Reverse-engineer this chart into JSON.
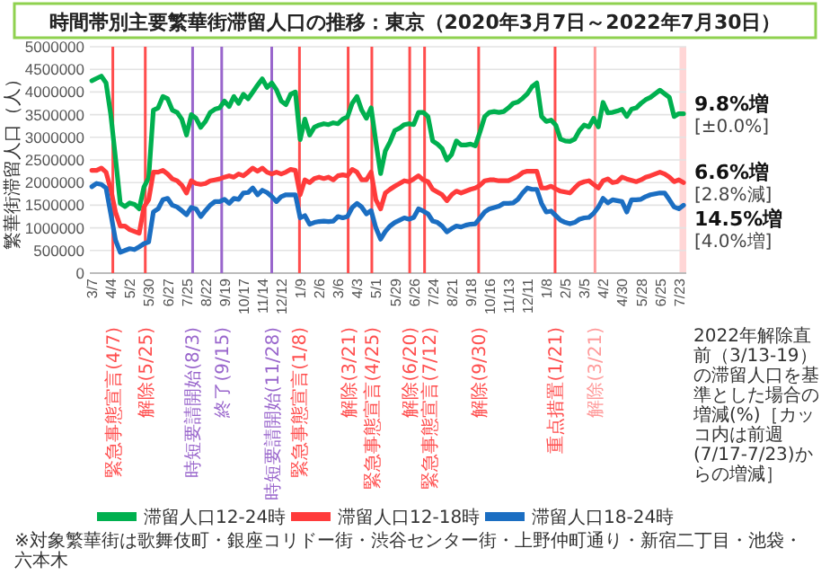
{
  "chart_data": {
    "type": "line",
    "title": "時間帯別主要繁華街滞留人口の推移：東京（2020年3月7日～2022年7月30日）",
    "ylabel": "繁華街滞留人口（人）",
    "x": [
      "2020-03-07",
      "2020-03-14",
      "2020-03-21",
      "2020-03-28",
      "2020-04-04",
      "2020-04-11",
      "2020-04-18",
      "2020-04-25",
      "2020-05-02",
      "2020-05-09",
      "2020-05-16",
      "2020-05-23",
      "2020-05-30",
      "2020-06-06",
      "2020-06-13",
      "2020-06-20",
      "2020-06-27",
      "2020-07-04",
      "2020-07-11",
      "2020-07-18",
      "2020-07-25",
      "2020-08-01",
      "2020-08-08",
      "2020-08-15",
      "2020-08-22",
      "2020-08-29",
      "2020-09-05",
      "2020-09-12",
      "2020-09-19",
      "2020-09-26",
      "2020-10-03",
      "2020-10-10",
      "2020-10-17",
      "2020-10-24",
      "2020-10-31",
      "2020-11-07",
      "2020-11-14",
      "2020-11-21",
      "2020-11-28",
      "2020-12-05",
      "2020-12-12",
      "2020-12-19",
      "2020-12-26",
      "2021-01-02",
      "2021-01-09",
      "2021-01-16",
      "2021-01-23",
      "2021-01-30",
      "2021-02-06",
      "2021-02-13",
      "2021-02-20",
      "2021-02-27",
      "2021-03-06",
      "2021-03-13",
      "2021-03-20",
      "2021-03-27",
      "2021-04-03",
      "2021-04-10",
      "2021-04-17",
      "2021-04-24",
      "2021-05-01",
      "2021-05-08",
      "2021-05-15",
      "2021-05-22",
      "2021-05-29",
      "2021-06-05",
      "2021-06-12",
      "2021-06-19",
      "2021-06-26",
      "2021-07-03",
      "2021-07-10",
      "2021-07-17",
      "2021-07-24",
      "2021-07-31",
      "2021-08-07",
      "2021-08-14",
      "2021-08-21",
      "2021-08-28",
      "2021-09-04",
      "2021-09-11",
      "2021-09-18",
      "2021-09-25",
      "2021-10-02",
      "2021-10-09",
      "2021-10-16",
      "2021-10-23",
      "2021-10-30",
      "2021-11-06",
      "2021-11-13",
      "2021-11-20",
      "2021-11-27",
      "2021-12-04",
      "2021-12-11",
      "2021-12-18",
      "2021-12-25",
      "2022-01-01",
      "2022-01-08",
      "2022-01-15",
      "2022-01-22",
      "2022-01-29",
      "2022-02-05",
      "2022-02-12",
      "2022-02-19",
      "2022-02-26",
      "2022-03-05",
      "2022-03-12",
      "2022-03-19",
      "2022-03-26",
      "2022-04-02",
      "2022-04-09",
      "2022-04-16",
      "2022-04-23",
      "2022-04-30",
      "2022-05-07",
      "2022-05-14",
      "2022-05-21",
      "2022-05-28",
      "2022-06-04",
      "2022-06-11",
      "2022-06-18",
      "2022-06-25",
      "2022-07-02",
      "2022-07-09",
      "2022-07-16",
      "2022-07-23",
      "2022-07-30"
    ],
    "series": [
      {
        "name": "滞留人口12-24時",
        "color": "#00b04f",
        "values": [
          4250000,
          4300000,
          4350000,
          4200000,
          3500000,
          2540000,
          1540000,
          1470000,
          1550000,
          1520000,
          1420000,
          1900000,
          2100000,
          3600000,
          3650000,
          3900000,
          3850000,
          3600000,
          3550000,
          3400000,
          3050000,
          3500000,
          3420000,
          3220000,
          3350000,
          3550000,
          3620000,
          3650000,
          3800000,
          3680000,
          3900000,
          3750000,
          3950000,
          3850000,
          4000000,
          4150000,
          4290000,
          4100000,
          4200000,
          4050000,
          3800000,
          3720000,
          3950000,
          4000000,
          2950000,
          3400000,
          3050000,
          3220000,
          3270000,
          3300000,
          3280000,
          3320000,
          3300000,
          3400000,
          3450000,
          3750000,
          3900000,
          3600000,
          3420000,
          3650000,
          2900000,
          2200000,
          2700000,
          2900000,
          3150000,
          3200000,
          3280000,
          3300000,
          3280000,
          3550000,
          3550000,
          3460000,
          2920000,
          2850000,
          2750000,
          2500000,
          2620000,
          2920000,
          2830000,
          2830000,
          2850000,
          2810000,
          3120000,
          3460000,
          3550000,
          3570000,
          3550000,
          3570000,
          3650000,
          3750000,
          3780000,
          3860000,
          3960000,
          4120000,
          4200000,
          3460000,
          3350000,
          3380000,
          3270000,
          2960000,
          2920000,
          2910000,
          2960000,
          3150000,
          3270000,
          3230000,
          3420000,
          3230000,
          3770000,
          3540000,
          3550000,
          3580000,
          3620000,
          3460000,
          3620000,
          3650000,
          3750000,
          3830000,
          3880000,
          3960000,
          4040000,
          3960000,
          3880000,
          3460000,
          3520000,
          3520000
        ]
      },
      {
        "name": "滞留人口12-18時",
        "color": "#ff3b3b",
        "values": [
          2270000,
          2270000,
          2320000,
          2230000,
          1850000,
          1350000,
          1040000,
          1040000,
          960000,
          920000,
          880000,
          1460000,
          1620000,
          2230000,
          2230000,
          2270000,
          2190000,
          2080000,
          2040000,
          1940000,
          1770000,
          2040000,
          1980000,
          1960000,
          1980000,
          2040000,
          2060000,
          2080000,
          2120000,
          2150000,
          2120000,
          2190000,
          2150000,
          2230000,
          2320000,
          2250000,
          2320000,
          2230000,
          2190000,
          2230000,
          2190000,
          2230000,
          2290000,
          2270000,
          1730000,
          2060000,
          2000000,
          2090000,
          2120000,
          2090000,
          2120000,
          2060000,
          2150000,
          2170000,
          2150000,
          2290000,
          2230000,
          2060000,
          2060000,
          2230000,
          1620000,
          1420000,
          1770000,
          1850000,
          1920000,
          1980000,
          2040000,
          2020000,
          2080000,
          2150000,
          2060000,
          2020000,
          1850000,
          1790000,
          1730000,
          1600000,
          1730000,
          1810000,
          1770000,
          1810000,
          1850000,
          1880000,
          1940000,
          2040000,
          2060000,
          2060000,
          2040000,
          2040000,
          2040000,
          2090000,
          2140000,
          2220000,
          2250000,
          2250000,
          2250000,
          1880000,
          1880000,
          1920000,
          1860000,
          1810000,
          1790000,
          1770000,
          1880000,
          1980000,
          2020000,
          2040000,
          1960000,
          1880000,
          2040000,
          2080000,
          2000000,
          2020000,
          2120000,
          2080000,
          2050000,
          2020000,
          2060000,
          2120000,
          2150000,
          2190000,
          2230000,
          2190000,
          2120000,
          2020000,
          2060000,
          2000000
        ]
      },
      {
        "name": "滞留人口18-24時",
        "color": "#1b6ec2",
        "values": [
          1910000,
          1980000,
          1960000,
          1880000,
          1310000,
          730000,
          460000,
          500000,
          540000,
          520000,
          580000,
          650000,
          690000,
          1350000,
          1420000,
          1620000,
          1650000,
          1500000,
          1460000,
          1380000,
          1290000,
          1450000,
          1420000,
          1250000,
          1380000,
          1500000,
          1580000,
          1580000,
          1630000,
          1540000,
          1650000,
          1630000,
          1770000,
          1780000,
          1880000,
          1730000,
          1830000,
          1780000,
          1690000,
          1580000,
          1690000,
          1730000,
          1730000,
          1730000,
          1220000,
          1270000,
          1080000,
          1120000,
          1140000,
          1150000,
          1140000,
          1150000,
          1250000,
          1220000,
          1250000,
          1450000,
          1540000,
          1460000,
          1310000,
          1380000,
          1000000,
          750000,
          920000,
          1040000,
          1120000,
          1170000,
          1220000,
          1190000,
          1230000,
          1420000,
          1370000,
          1310000,
          1150000,
          1120000,
          1040000,
          910000,
          980000,
          1040000,
          1020000,
          1060000,
          1080000,
          1090000,
          1220000,
          1350000,
          1420000,
          1450000,
          1480000,
          1540000,
          1540000,
          1550000,
          1630000,
          1770000,
          1880000,
          1850000,
          1850000,
          1540000,
          1350000,
          1370000,
          1270000,
          1170000,
          1120000,
          1090000,
          1120000,
          1190000,
          1220000,
          1230000,
          1320000,
          1460000,
          1650000,
          1550000,
          1620000,
          1600000,
          1580000,
          1350000,
          1620000,
          1620000,
          1630000,
          1690000,
          1730000,
          1750000,
          1770000,
          1770000,
          1620000,
          1460000,
          1420000,
          1500000
        ]
      }
    ],
    "xlim": [
      "2020-03-04",
      "2022-08-03"
    ],
    "ylim": [
      0,
      5000000
    ],
    "yticks": [
      0,
      500000,
      1000000,
      1500000,
      2000000,
      2500000,
      3000000,
      3500000,
      4000000,
      4500000,
      5000000
    ],
    "xticks": [
      {
        "value": "2020-03-07",
        "label": "3/7"
      },
      {
        "value": "2020-04-04",
        "label": "4/4"
      },
      {
        "value": "2020-05-02",
        "label": "5/2"
      },
      {
        "value": "2020-05-30",
        "label": "5/30"
      },
      {
        "value": "2020-06-27",
        "label": "6/27"
      },
      {
        "value": "2020-07-25",
        "label": "7/25"
      },
      {
        "value": "2020-08-22",
        "label": "8/22"
      },
      {
        "value": "2020-09-19",
        "label": "9/19"
      },
      {
        "value": "2020-10-17",
        "label": "10/17"
      },
      {
        "value": "2020-11-14",
        "label": "11/14"
      },
      {
        "value": "2020-12-12",
        "label": "12/12"
      },
      {
        "value": "2021-01-09",
        "label": "1/9"
      },
      {
        "value": "2021-02-06",
        "label": "2/6"
      },
      {
        "value": "2021-03-06",
        "label": "3/6"
      },
      {
        "value": "2021-04-03",
        "label": "4/3"
      },
      {
        "value": "2021-05-01",
        "label": "5/1"
      },
      {
        "value": "2021-05-29",
        "label": "5/29"
      },
      {
        "value": "2021-06-26",
        "label": "6/26"
      },
      {
        "value": "2021-07-24",
        "label": "7/24"
      },
      {
        "value": "2021-08-21",
        "label": "8/21"
      },
      {
        "value": "2021-09-18",
        "label": "9/18"
      },
      {
        "value": "2021-10-16",
        "label": "10/16"
      },
      {
        "value": "2021-11-13",
        "label": "11/13"
      },
      {
        "value": "2021-12-11",
        "label": "12/11"
      },
      {
        "value": "2022-01-08",
        "label": "1/8"
      },
      {
        "value": "2022-02-05",
        "label": "2/5"
      },
      {
        "value": "2022-03-05",
        "label": "3/5"
      },
      {
        "value": "2022-04-02",
        "label": "4/2"
      },
      {
        "value": "2022-04-30",
        "label": "4/30"
      },
      {
        "value": "2022-05-28",
        "label": "5/28"
      },
      {
        "value": "2022-06-25",
        "label": "6/25"
      },
      {
        "value": "2022-07-23",
        "label": "7/23"
      }
    ],
    "grid": "y",
    "legend": "bottom",
    "ref_lines": [
      {
        "axis": "x",
        "value": "2020-04-07",
        "label": "緊急事態宣言(4/7)",
        "color": "#ff4d4d"
      },
      {
        "axis": "x",
        "value": "2020-05-25",
        "label": "解除(5/25)",
        "color": "#ff4d4d"
      },
      {
        "axis": "x",
        "value": "2020-08-03",
        "label": "時短要請開始(8/3)",
        "color": "#9966cc"
      },
      {
        "axis": "x",
        "value": "2020-09-15",
        "label": "終了(9/15)",
        "color": "#9966cc"
      },
      {
        "axis": "x",
        "value": "2020-11-28",
        "label": "時短要請開始(11/28)",
        "color": "#9966cc"
      },
      {
        "axis": "x",
        "value": "2021-01-08",
        "label": "緊急事態宣言(1/8)",
        "color": "#ff4d4d"
      },
      {
        "axis": "x",
        "value": "2021-03-21",
        "label": "解除(3/21)",
        "color": "#ff4d4d"
      },
      {
        "axis": "x",
        "value": "2021-04-25",
        "label": "緊急事態宣言(4/25)",
        "color": "#ff4d4d"
      },
      {
        "axis": "x",
        "value": "2021-06-20",
        "label": "解除(6/20)",
        "color": "#ff4d4d"
      },
      {
        "axis": "x",
        "value": "2021-07-12",
        "label": "緊急事態宣言(7/12)",
        "color": "#ff4d4d"
      },
      {
        "axis": "x",
        "value": "2021-09-30",
        "label": "解除(9/30)",
        "color": "#ff4d4d"
      },
      {
        "axis": "x",
        "value": "2022-01-21",
        "label": "重点措置(1/21)",
        "color": "#ff4d4d"
      },
      {
        "axis": "x",
        "value": "2022-03-21",
        "label": "解除(3/21)",
        "color": "#ff9a9a"
      }
    ],
    "bands": [
      {
        "axis": "x",
        "from": "2022-07-24",
        "to": "2022-08-03",
        "color": "#ffd6d6"
      }
    ],
    "annotations": [
      "2022年解除直前（3/13-19）の滞留人口を基準とした場合の増減(%)［カッコ内は前週(7/17-7/23)からの増減］",
      {
        "text": "9.8%増\n[±0.0%]",
        "x": "2022-07-30",
        "y": 3520000
      },
      {
        "text": "6.6%増\n[2.8%減]",
        "x": "2022-07-30",
        "y": 2000000
      },
      {
        "text": "14.5%増\n[4.0%増]",
        "x": "2022-07-30",
        "y": 1500000
      },
      "※対象繁華街は歌舞伎町・銀座コリドー街・渋谷センター街・上野仲町通り・新宿二丁目・池袋・六本木"
    ]
  }
}
